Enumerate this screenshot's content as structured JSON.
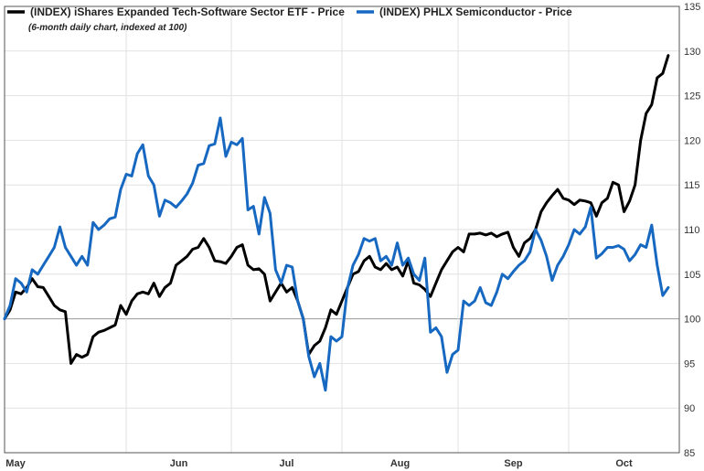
{
  "chart_data": {
    "type": "line",
    "title": "",
    "subtitle": "(6-month daily chart, indexed at 100)",
    "xlabel": "",
    "ylabel": "",
    "ylim": [
      85,
      135
    ],
    "y_ticks": [
      85,
      90,
      95,
      100,
      105,
      110,
      115,
      120,
      125,
      130,
      135
    ],
    "baseline": 100,
    "x_range": [
      0,
      122
    ],
    "months": [
      {
        "label": "May",
        "x": 1
      },
      {
        "label": "Jun",
        "x": 22
      },
      {
        "label": "Jul",
        "x": 41
      },
      {
        "label": "Aug",
        "x": 61
      },
      {
        "label": "Sep",
        "x": 82
      },
      {
        "label": "Oct",
        "x": 102
      }
    ],
    "legend_position": "top-left",
    "series": [
      {
        "name": "(INDEX) iShares Expanded Tech-Software Sector ETF - Price",
        "color": "#000000",
        "values": [
          100,
          101,
          103,
          102.8,
          103.5,
          104.5,
          103.6,
          103.5,
          102.5,
          101.5,
          101,
          100.8,
          95,
          96,
          95.7,
          96,
          98,
          98.5,
          98.7,
          99,
          99.3,
          101.5,
          100.5,
          102,
          102.8,
          103,
          102.8,
          104,
          102.5,
          103.5,
          104,
          106,
          106.5,
          107,
          107.8,
          108,
          109,
          108,
          106.5,
          106.4,
          106.2,
          107,
          108,
          108.3,
          106,
          105.5,
          105.6,
          105,
          102,
          103,
          104,
          103,
          103.5,
          102,
          100,
          96,
          97,
          97.5,
          99,
          101,
          100.5,
          102,
          103.5,
          105,
          105.3,
          106.5,
          107,
          105.8,
          105.5,
          106.2,
          105.5,
          105.8,
          104.8,
          106.5,
          104,
          103.8,
          103.3,
          102.5,
          104,
          105.5,
          106.5,
          107.5,
          108,
          107.5,
          109.5,
          109.5,
          109.6,
          109.4,
          109.6,
          109.2,
          109.5,
          109.7,
          108,
          107,
          108.5,
          109,
          110,
          112,
          113,
          113.8,
          114.5,
          113.5,
          113.3,
          112.8,
          113.3,
          113.2,
          113,
          111.5,
          113,
          113.5,
          115.3,
          115,
          112,
          113.2,
          115,
          120,
          123,
          124,
          127,
          127.5,
          129.5
        ],
        "end_index": 120
      },
      {
        "name": "(INDEX) PHLX Semiconductor - Price",
        "color": "#1668c1",
        "values": [
          100,
          101.5,
          104.5,
          104,
          103,
          105.5,
          105,
          106,
          107,
          108,
          110.3,
          108,
          107,
          106,
          107,
          106,
          110.8,
          110,
          110.5,
          111.2,
          111.4,
          114.5,
          116.2,
          116,
          118.5,
          119.5,
          116,
          115,
          111.5,
          113.3,
          113,
          112.5,
          113.2,
          114,
          115.2,
          117.2,
          117.4,
          119.4,
          119.6,
          122.5,
          118.2,
          119.8,
          119.5,
          120.2,
          112.2,
          112.6,
          109.5,
          113.6,
          111.8,
          105.5,
          104,
          106,
          105.8,
          102,
          100,
          95.8,
          93.5,
          95,
          92,
          98,
          97.5,
          98,
          103.4,
          106,
          107.2,
          109,
          108.7,
          109,
          106.5,
          107,
          106,
          108.5,
          106,
          106.8,
          105,
          104.3,
          106.8,
          98.5,
          99,
          98,
          94,
          96,
          96.5,
          102,
          101.5,
          102,
          103.5,
          101.8,
          101.5,
          103,
          105,
          104.5,
          105.3,
          106,
          106.5,
          107.5,
          110,
          108.8,
          107,
          104.3,
          106,
          107,
          108.3,
          110,
          109.5,
          110.3,
          112.5,
          106.8,
          107.3,
          108,
          108,
          108.2,
          107.8,
          106.5,
          107.2,
          108.3,
          108,
          110.5,
          106,
          102.6,
          103.5
        ],
        "end_index": 120
      }
    ]
  }
}
